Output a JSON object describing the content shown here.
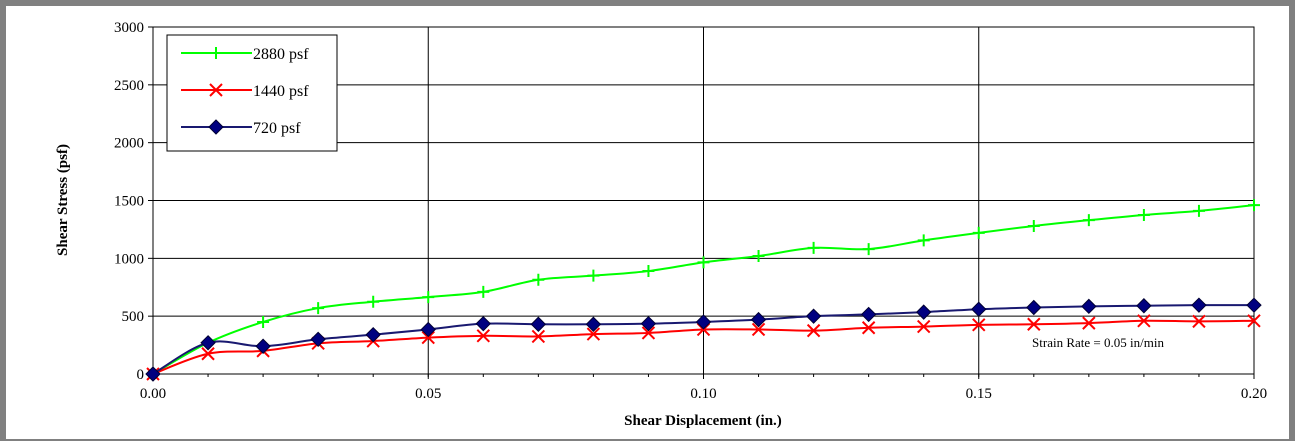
{
  "chart_data": {
    "type": "line",
    "xlabel": "Shear Displacement (in.)",
    "ylabel": "Shear Stress (psf)",
    "xlim": [
      0,
      0.2
    ],
    "ylim": [
      0,
      3000
    ],
    "x_ticks": [
      "0.00",
      "0.05",
      "0.10",
      "0.15",
      "0.20"
    ],
    "y_ticks": [
      "0",
      "500",
      "1000",
      "1500",
      "2000",
      "2500",
      "3000"
    ],
    "grid": true,
    "legend_position": "top-left",
    "annotation": "Strain Rate = 0.05 in/min",
    "series": [
      {
        "name": "2880 psf",
        "color": "#00ff00",
        "marker": "plus",
        "x": [
          0,
          0.01,
          0.02,
          0.03,
          0.04,
          0.05,
          0.06,
          0.07,
          0.08,
          0.09,
          0.1,
          0.11,
          0.12,
          0.13,
          0.14,
          0.15,
          0.16,
          0.17,
          0.18,
          0.19,
          0.2
        ],
        "y": [
          0,
          270,
          450,
          570,
          625,
          665,
          710,
          815,
          850,
          890,
          965,
          1020,
          1090,
          1080,
          1155,
          1220,
          1280,
          1330,
          1375,
          1410,
          1460
        ]
      },
      {
        "name": "1440 psf",
        "color": "#ff0000",
        "marker": "x",
        "x": [
          0,
          0.01,
          0.02,
          0.03,
          0.04,
          0.05,
          0.06,
          0.07,
          0.08,
          0.09,
          0.1,
          0.11,
          0.12,
          0.13,
          0.14,
          0.15,
          0.16,
          0.17,
          0.18,
          0.19,
          0.2
        ],
        "y": [
          0,
          175,
          200,
          265,
          285,
          315,
          330,
          325,
          345,
          355,
          385,
          385,
          375,
          400,
          410,
          425,
          430,
          440,
          460,
          455,
          460
        ]
      },
      {
        "name": "720 psf",
        "color": "#191970",
        "marker": "diamond",
        "x": [
          0,
          0.01,
          0.02,
          0.03,
          0.04,
          0.05,
          0.06,
          0.07,
          0.08,
          0.09,
          0.1,
          0.11,
          0.12,
          0.13,
          0.14,
          0.15,
          0.16,
          0.17,
          0.18,
          0.19,
          0.2
        ],
        "y": [
          0,
          270,
          240,
          300,
          340,
          385,
          435,
          430,
          430,
          435,
          450,
          470,
          500,
          515,
          535,
          560,
          575,
          585,
          590,
          595,
          595
        ]
      }
    ]
  }
}
